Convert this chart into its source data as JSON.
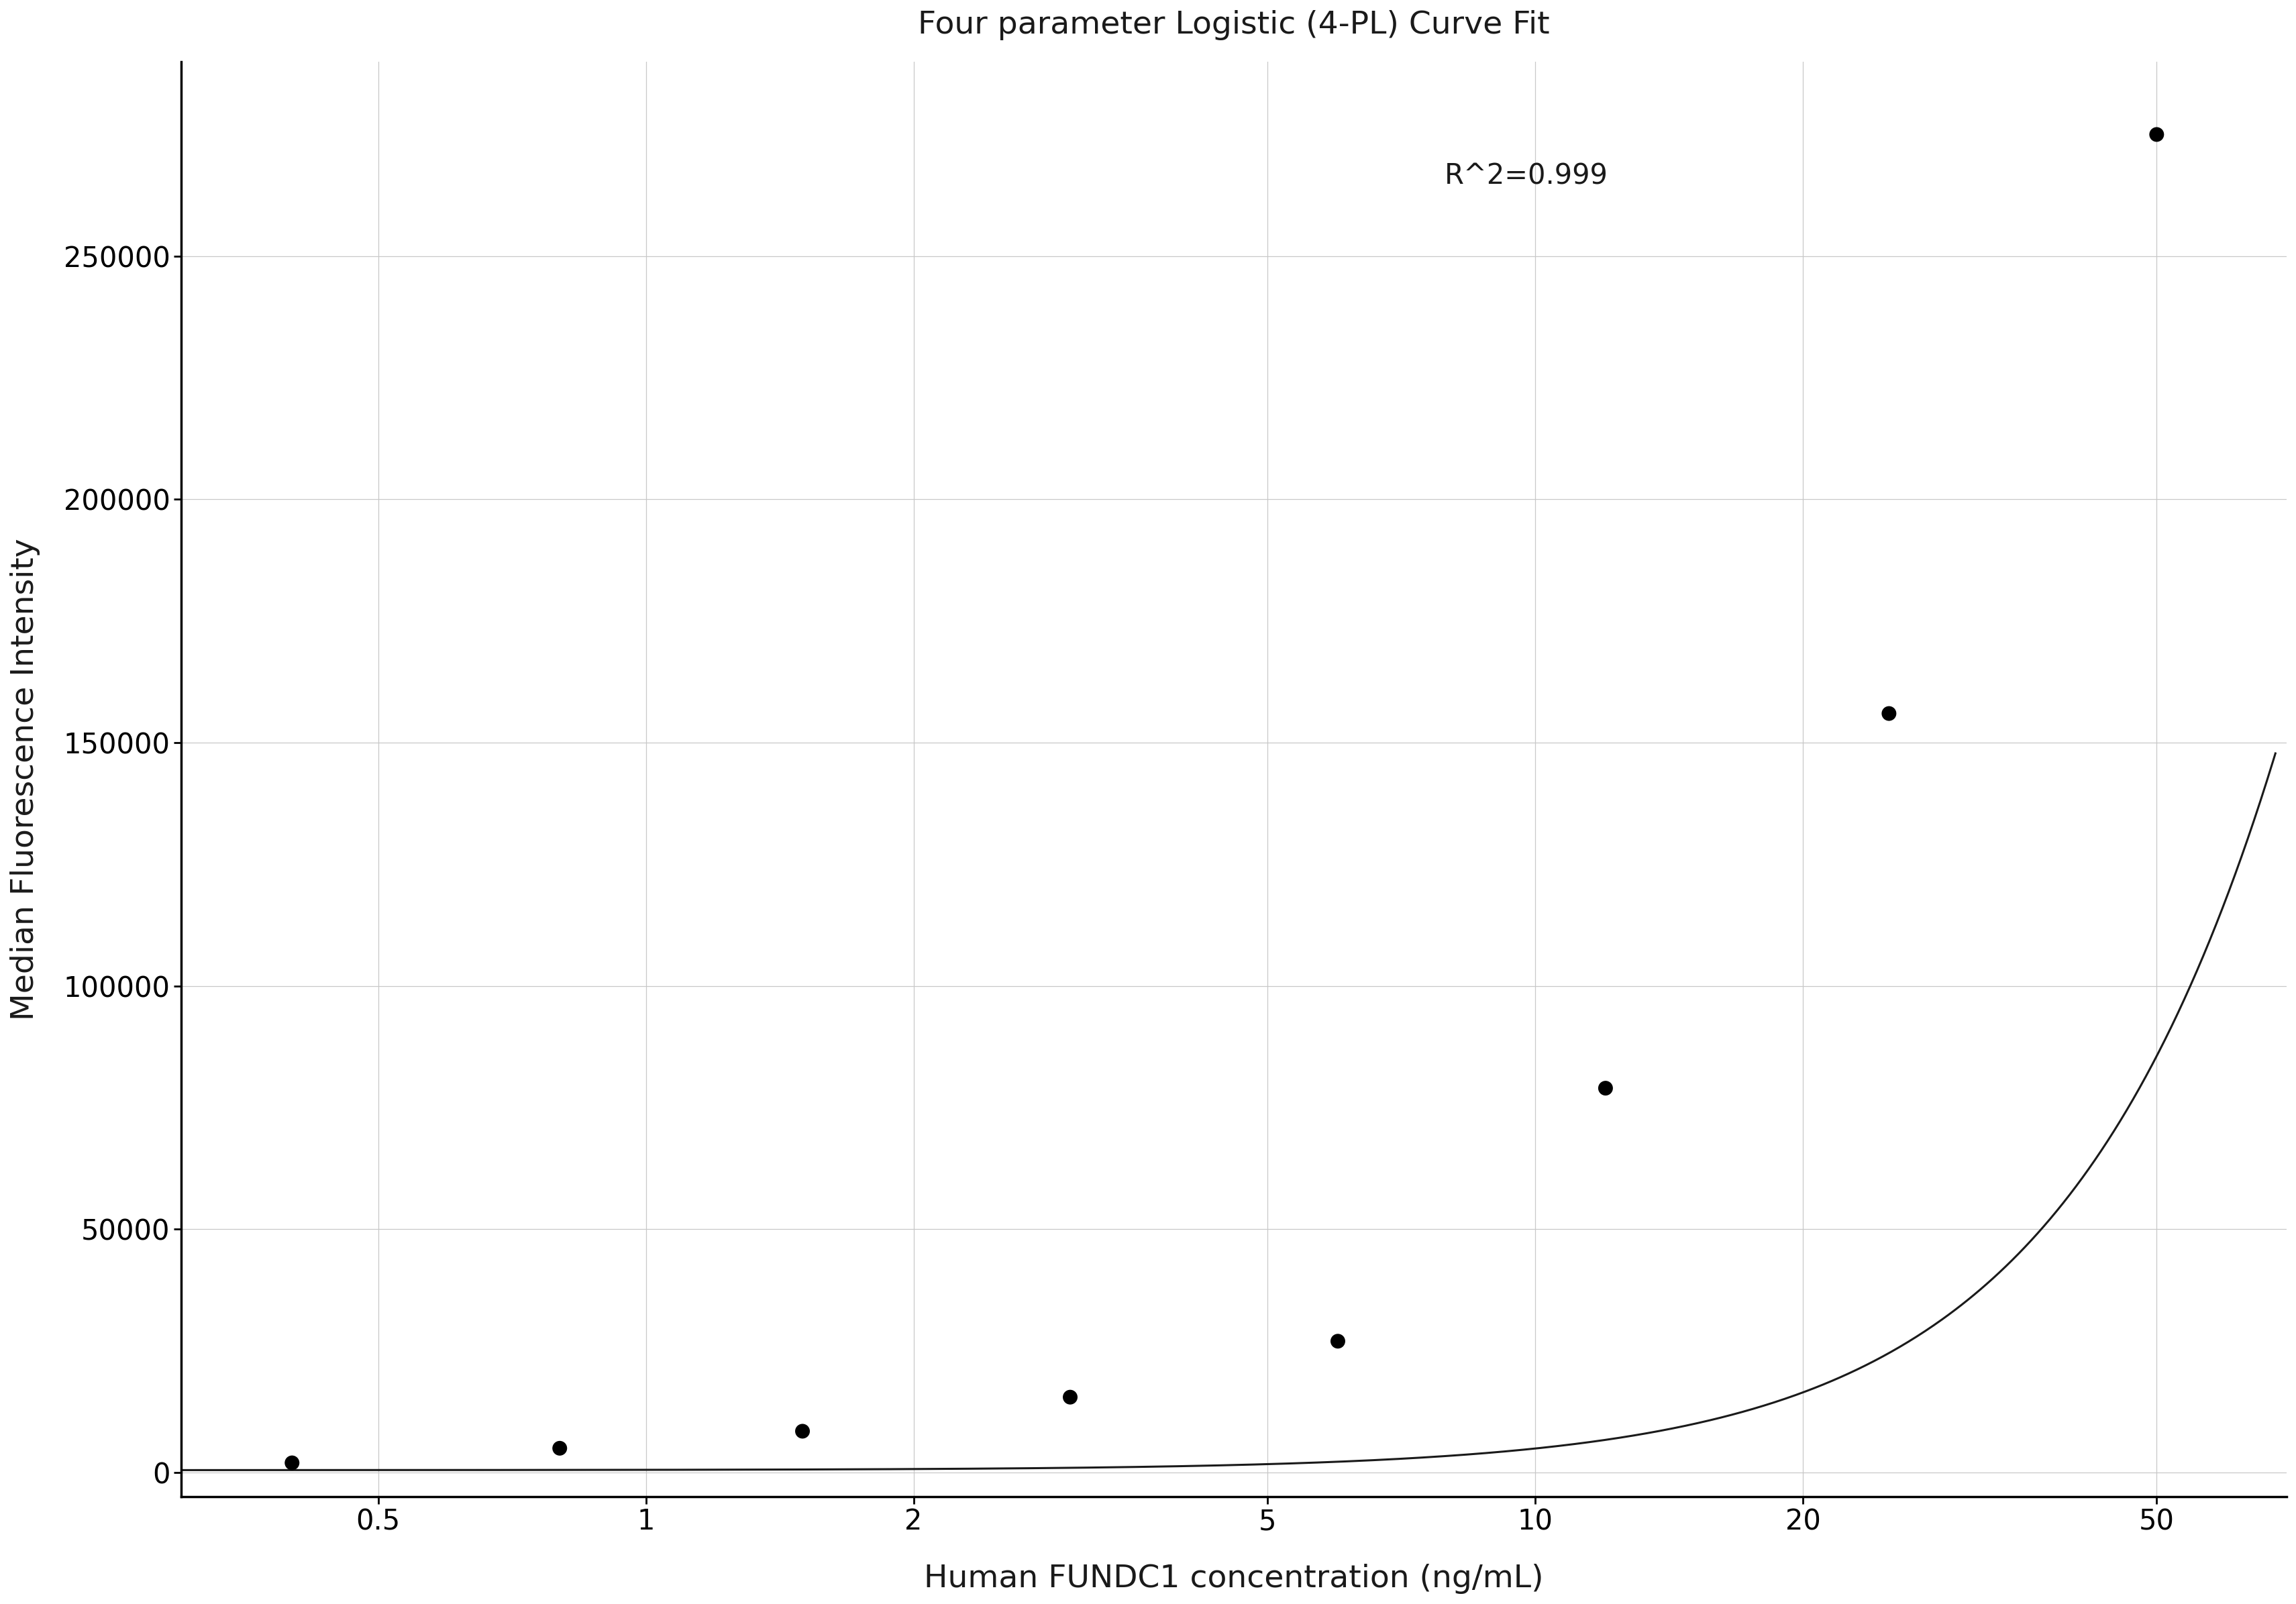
{
  "title": "Four parameter Logistic (4-PL) Curve Fit",
  "xlabel": "Human FUNDC1 concentration (ng/mL)",
  "ylabel": "Median Fluorescence Intensity",
  "r_squared": "R^2=0.999",
  "data_x": [
    0.4,
    0.8,
    1.5,
    3.0,
    6.0,
    12.0,
    25.0,
    50.0
  ],
  "data_y": [
    2000,
    5000,
    8500,
    15500,
    27000,
    79000,
    156000,
    275000
  ],
  "xlim": [
    0.3,
    70
  ],
  "ylim": [
    -5000,
    290000
  ],
  "yticks": [
    0,
    50000,
    100000,
    150000,
    200000,
    250000
  ],
  "xticks": [
    0.5,
    1,
    2,
    5,
    10,
    20,
    50
  ],
  "xtick_labels": [
    "0.5",
    "1",
    "2",
    "5",
    "10",
    "20",
    "50"
  ],
  "curve_color": "#1a1a1a",
  "dot_color": "#000000",
  "grid_color": "#c8c8c8",
  "background_color": "#ffffff",
  "text_color": "#1a1a1a",
  "xlabel_color": "#1a1a1a",
  "4pl_A": 500,
  "4pl_B": 1.85,
  "4pl_C": 350.0,
  "4pl_D": 3200000
}
